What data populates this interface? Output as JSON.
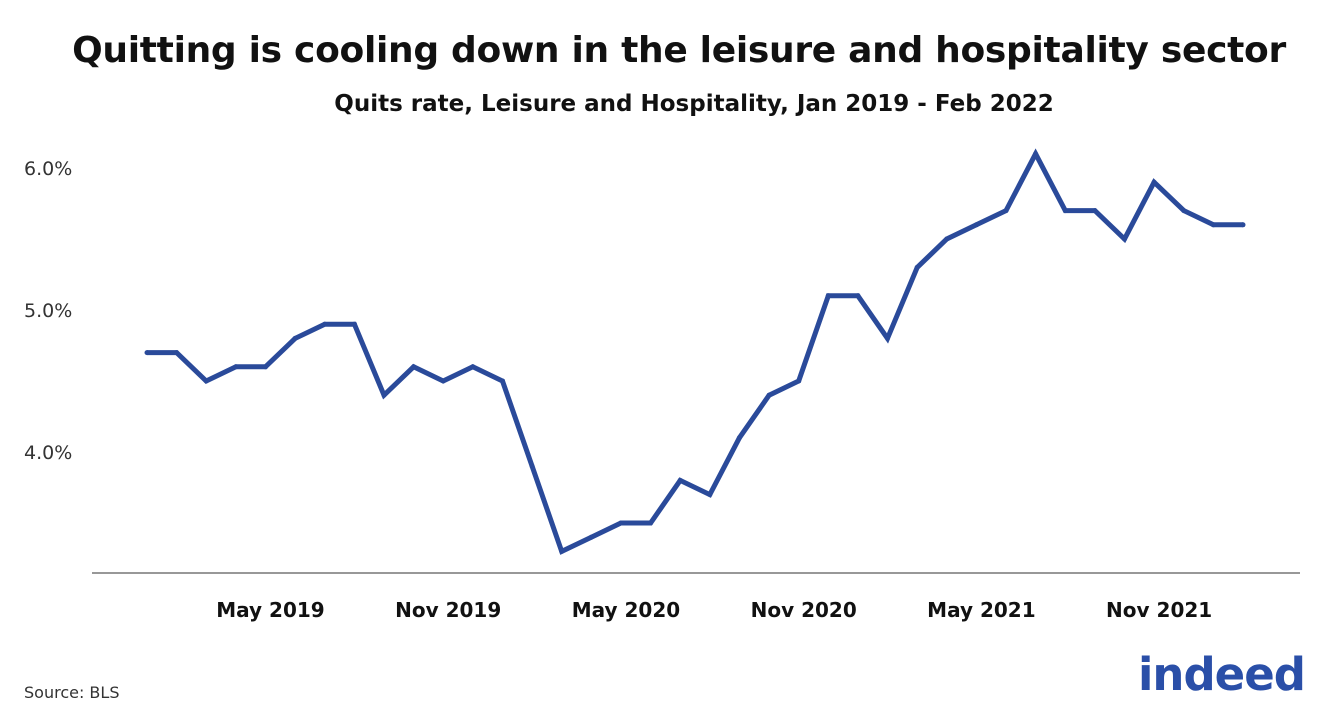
{
  "chart_data": {
    "type": "line",
    "title": "Quitting is cooling down in the leisure and hospitality sector",
    "subtitle": "Quits rate, Leisure and Hospitality, Jan 2019 - Feb 2022",
    "xlabel": "",
    "ylabel": "",
    "ylim": [
      3.2,
      6.2
    ],
    "grid": false,
    "y_ticks": [
      {
        "value": 4.0,
        "label": "4.0%"
      },
      {
        "value": 5.0,
        "label": "5.0%"
      },
      {
        "value": 6.0,
        "label": "6.0%"
      }
    ],
    "x_ticks": [
      {
        "index": 4,
        "label": "May 2019"
      },
      {
        "index": 10,
        "label": "Nov 2019"
      },
      {
        "index": 16,
        "label": "May 2020"
      },
      {
        "index": 22,
        "label": "Nov 2020"
      },
      {
        "index": 28,
        "label": "May 2021"
      },
      {
        "index": 34,
        "label": "Nov 2021"
      }
    ],
    "series": [
      {
        "name": "Quits rate",
        "color": "#2a4a9a",
        "x": [
          "2019-01",
          "2019-02",
          "2019-03",
          "2019-04",
          "2019-05",
          "2019-06",
          "2019-07",
          "2019-08",
          "2019-09",
          "2019-10",
          "2019-11",
          "2019-12",
          "2020-01",
          "2020-02",
          "2020-03",
          "2020-04",
          "2020-05",
          "2020-06",
          "2020-07",
          "2020-08",
          "2020-09",
          "2020-10",
          "2020-11",
          "2020-12",
          "2021-01",
          "2021-02",
          "2021-03",
          "2021-04",
          "2021-05",
          "2021-06",
          "2021-07",
          "2021-08",
          "2021-09",
          "2021-10",
          "2021-11",
          "2021-12",
          "2022-01",
          "2022-02"
        ],
        "values": [
          4.7,
          4.7,
          4.5,
          4.6,
          4.6,
          4.8,
          4.9,
          4.9,
          4.4,
          4.6,
          4.5,
          4.6,
          4.5,
          3.9,
          3.3,
          3.4,
          3.5,
          3.5,
          3.8,
          3.7,
          4.1,
          4.4,
          4.5,
          5.1,
          5.1,
          4.8,
          5.3,
          5.5,
          5.6,
          5.7,
          6.1,
          5.7,
          5.7,
          5.5,
          5.9,
          5.7,
          5.6,
          5.6
        ]
      }
    ]
  },
  "footer": {
    "source": "Source: BLS",
    "logo": "indeed"
  }
}
